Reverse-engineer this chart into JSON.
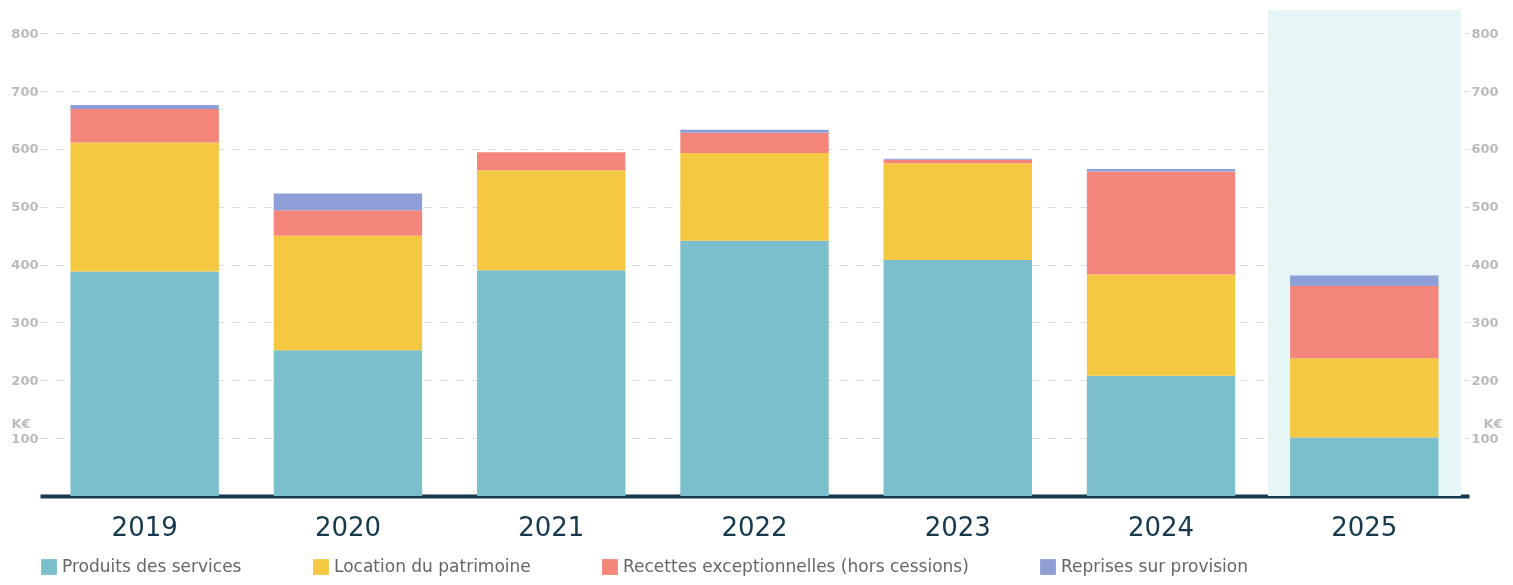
{
  "chart_data": {
    "type": "bar",
    "stacked": true,
    "categories": [
      "2019",
      "2020",
      "2021",
      "2022",
      "2023",
      "2024",
      "2025"
    ],
    "series": [
      {
        "name": "Produits des services",
        "color": "#7bbfcc",
        "values": [
          388,
          252,
          390,
          441,
          408,
          208,
          101
        ]
      },
      {
        "name": "Location du patrimoine",
        "color": "#f5c842",
        "values": [
          223,
          198,
          173,
          152,
          167,
          175,
          137
        ]
      },
      {
        "name": "Recettes exceptionnelles (hors cessions)",
        "color": "#f3857a",
        "values": [
          58,
          44,
          31,
          35,
          6,
          178,
          125
        ]
      },
      {
        "name": "Reprises sur provision",
        "color": "#8d9fd6",
        "values": [
          7,
          29,
          0,
          5,
          2,
          4,
          18
        ]
      }
    ],
    "ylim": [
      0,
      840
    ],
    "yticks": [
      100,
      200,
      300,
      400,
      500,
      600,
      700,
      800
    ],
    "y2lim": [
      0,
      840
    ],
    "y2ticks": [
      100,
      200,
      300,
      400,
      500,
      600,
      700,
      800
    ],
    "ylabel": "K€",
    "y2label": "K€",
    "bands": [
      {
        "axis": "x",
        "from": "2025",
        "to": "2025",
        "color": "#e6f5f6"
      }
    ],
    "grid": "y",
    "legend": "bottom"
  }
}
